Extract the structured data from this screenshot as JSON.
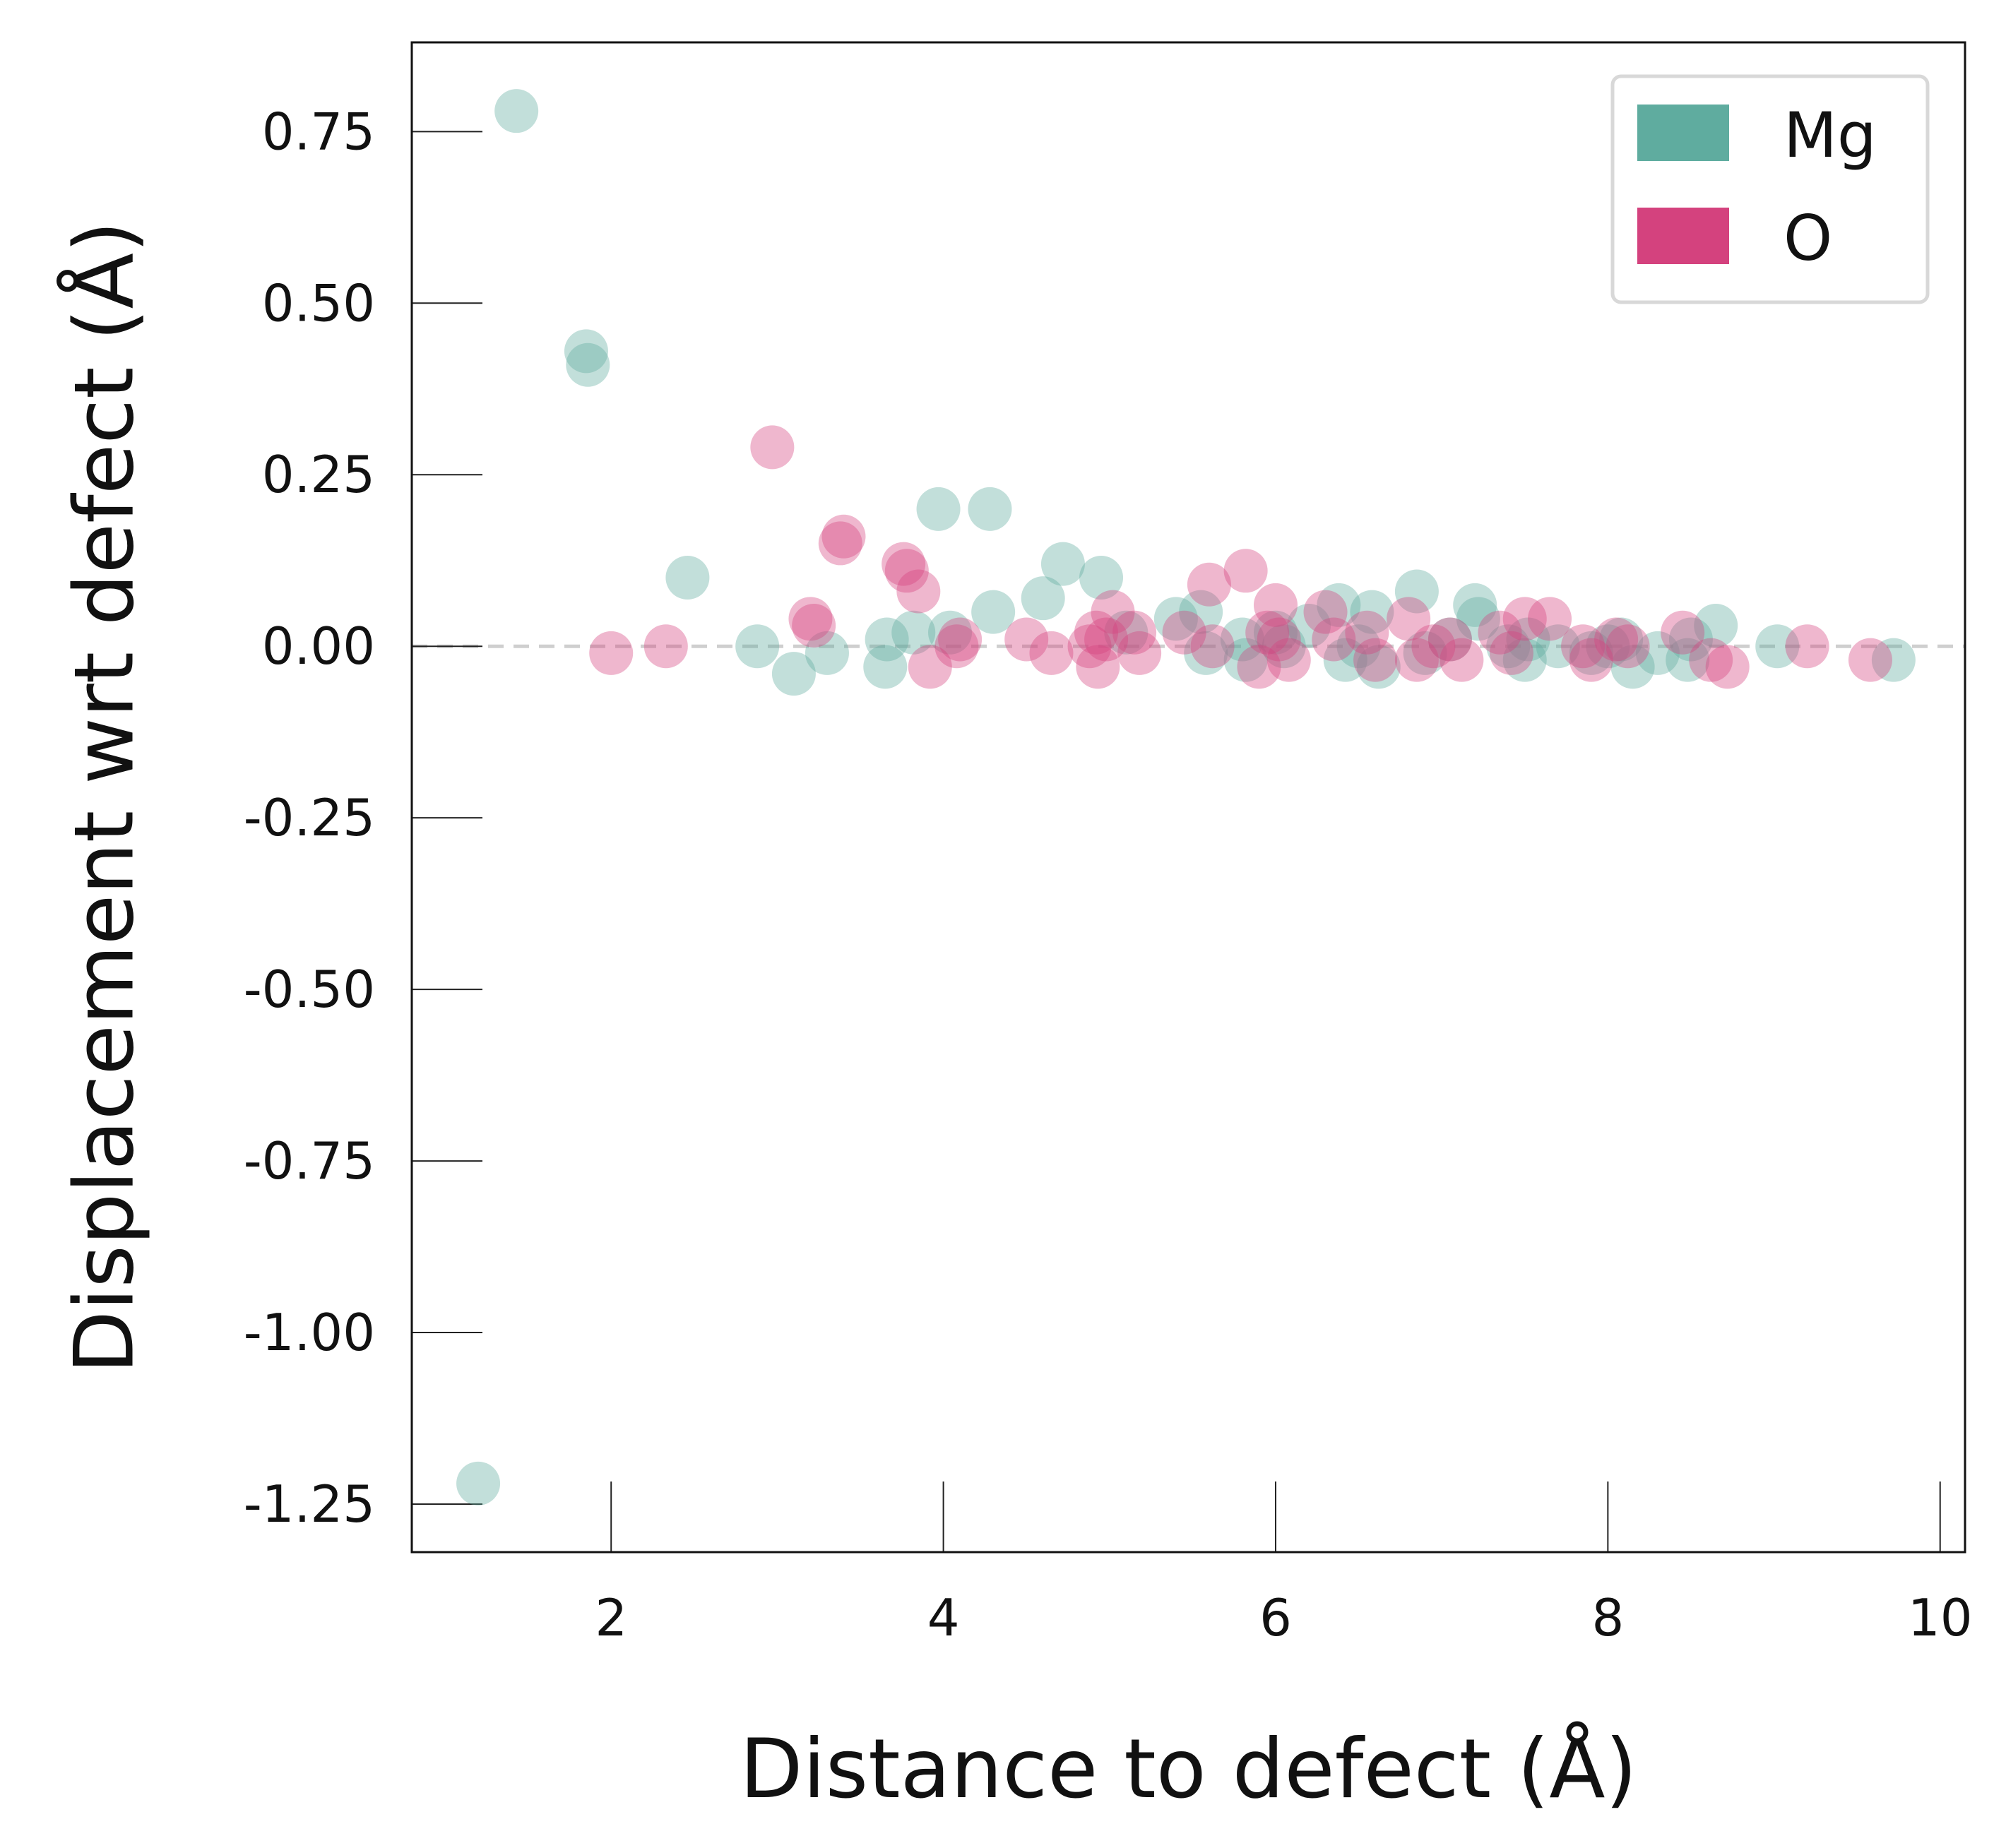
{
  "chart_data": {
    "type": "scatter",
    "xlabel": "Distance to defect (Å)",
    "ylabel": "Displacement wrt defect (Å)",
    "xlim": [
      0.8,
      10.15
    ],
    "ylim": [
      -1.32,
      0.88
    ],
    "x_ticks": [
      2,
      4,
      6,
      8,
      10
    ],
    "x_tick_labels": [
      "2",
      "4",
      "6",
      "8",
      "10"
    ],
    "y_ticks": [
      0.75,
      0.5,
      0.25,
      0.0,
      -0.25,
      -0.5,
      -0.75,
      -1.0,
      -1.25
    ],
    "y_tick_labels": [
      "0.75",
      "0.50",
      "0.25",
      "0.00",
      "-0.25",
      "-0.50",
      "-0.75",
      "-1.00",
      "-1.25"
    ],
    "reference_line": {
      "y": 0.0,
      "style": "dashed",
      "color": "#cfcfcf"
    },
    "legend": {
      "position": "top-right",
      "entries": [
        "Mg",
        "O"
      ]
    },
    "grid": false,
    "series": [
      {
        "name": "Mg",
        "color": "#5fac9f",
        "points": [
          [
            1.2,
            -1.22
          ],
          [
            1.43,
            0.78
          ],
          [
            1.85,
            0.43
          ],
          [
            1.86,
            0.41
          ],
          [
            2.46,
            0.1
          ],
          [
            2.88,
            0.0
          ],
          [
            3.1,
            -0.04
          ],
          [
            3.3,
            -0.01
          ],
          [
            3.66,
            0.01
          ],
          [
            3.65,
            -0.03
          ],
          [
            3.82,
            0.02
          ],
          [
            3.97,
            0.2
          ],
          [
            4.04,
            0.02
          ],
          [
            4.28,
            0.2
          ],
          [
            4.3,
            0.05
          ],
          [
            4.6,
            0.07
          ],
          [
            4.72,
            0.12
          ],
          [
            4.95,
            0.1
          ],
          [
            5.1,
            0.02
          ],
          [
            5.4,
            0.04
          ],
          [
            5.55,
            0.05
          ],
          [
            5.58,
            -0.01
          ],
          [
            5.8,
            0.01
          ],
          [
            5.82,
            -0.02
          ],
          [
            6.0,
            0.02
          ],
          [
            6.05,
            0.0
          ],
          [
            6.2,
            0.03
          ],
          [
            6.38,
            0.06
          ],
          [
            6.42,
            -0.02
          ],
          [
            6.5,
            0.0
          ],
          [
            6.58,
            0.05
          ],
          [
            6.62,
            -0.03
          ],
          [
            6.85,
            0.08
          ],
          [
            6.9,
            -0.01
          ],
          [
            7.05,
            0.01
          ],
          [
            7.2,
            0.06
          ],
          [
            7.22,
            0.04
          ],
          [
            7.4,
            0.0
          ],
          [
            7.5,
            -0.02
          ],
          [
            7.52,
            0.01
          ],
          [
            7.7,
            0.0
          ],
          [
            7.9,
            -0.01
          ],
          [
            8.0,
            0.0
          ],
          [
            8.08,
            0.01
          ],
          [
            8.15,
            -0.03
          ],
          [
            8.3,
            -0.01
          ],
          [
            8.5,
            0.01
          ],
          [
            8.48,
            -0.02
          ],
          [
            8.65,
            0.03
          ],
          [
            9.02,
            0.0
          ],
          [
            9.72,
            -0.02
          ]
        ]
      },
      {
        "name": "O",
        "color": "#d4427e",
        "points": [
          [
            2.0,
            -0.01
          ],
          [
            2.33,
            0.0
          ],
          [
            2.97,
            0.29
          ],
          [
            3.2,
            0.04
          ],
          [
            3.22,
            0.03
          ],
          [
            3.38,
            0.15
          ],
          [
            3.4,
            0.16
          ],
          [
            3.76,
            0.12
          ],
          [
            3.78,
            0.11
          ],
          [
            3.85,
            0.08
          ],
          [
            3.92,
            -0.03
          ],
          [
            4.08,
            0.0
          ],
          [
            4.1,
            0.01
          ],
          [
            4.5,
            0.01
          ],
          [
            4.65,
            -0.01
          ],
          [
            4.88,
            0.0
          ],
          [
            4.92,
            0.02
          ],
          [
            4.93,
            -0.03
          ],
          [
            4.98,
            0.01
          ],
          [
            5.02,
            0.05
          ],
          [
            5.15,
            0.02
          ],
          [
            5.18,
            -0.01
          ],
          [
            5.45,
            0.02
          ],
          [
            5.6,
            0.09
          ],
          [
            5.62,
            0.0
          ],
          [
            5.82,
            0.11
          ],
          [
            5.9,
            -0.03
          ],
          [
            5.95,
            0.02
          ],
          [
            6.0,
            0.06
          ],
          [
            6.02,
            0.01
          ],
          [
            6.08,
            -0.02
          ],
          [
            6.3,
            0.05
          ],
          [
            6.35,
            0.01
          ],
          [
            6.55,
            0.02
          ],
          [
            6.6,
            -0.02
          ],
          [
            6.8,
            0.04
          ],
          [
            6.85,
            -0.02
          ],
          [
            6.95,
            0.0
          ],
          [
            7.05,
            0.01
          ],
          [
            7.12,
            -0.02
          ],
          [
            7.35,
            0.02
          ],
          [
            7.42,
            -0.01
          ],
          [
            7.5,
            0.04
          ],
          [
            7.65,
            0.04
          ],
          [
            7.85,
            0.0
          ],
          [
            7.9,
            -0.02
          ],
          [
            8.05,
            0.01
          ],
          [
            8.12,
            0.0
          ],
          [
            8.45,
            0.02
          ],
          [
            8.62,
            -0.02
          ],
          [
            8.72,
            -0.03
          ],
          [
            9.2,
            0.0
          ],
          [
            9.58,
            -0.02
          ]
        ]
      }
    ]
  }
}
